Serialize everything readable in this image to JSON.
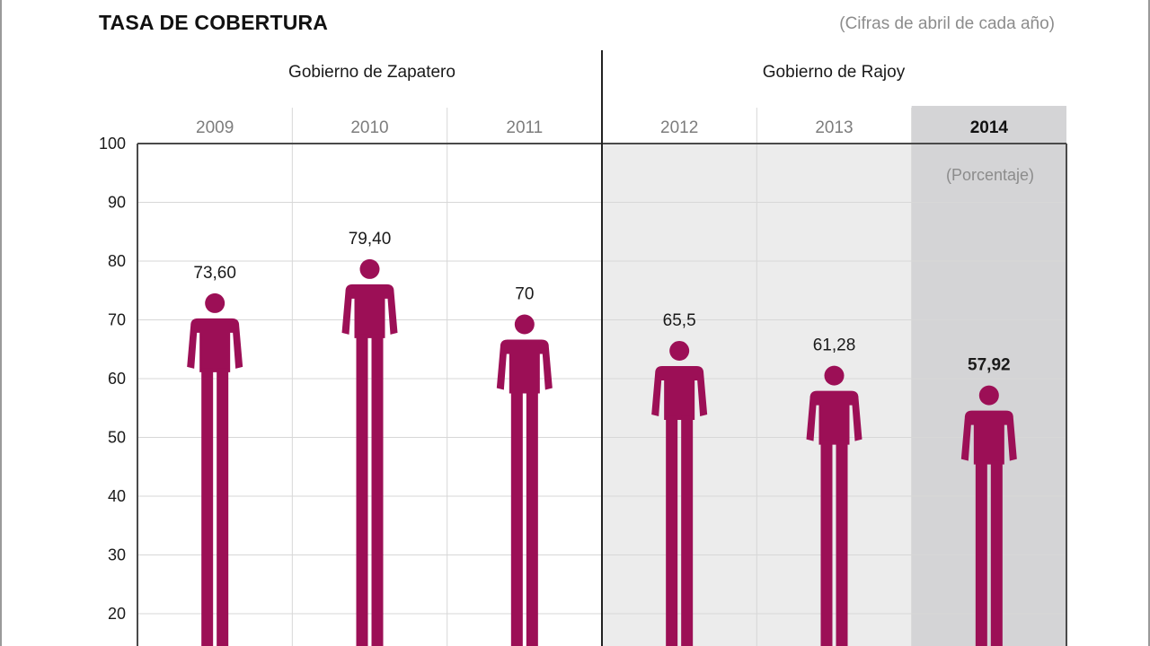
{
  "header": {
    "title": "TASA DE COBERTURA",
    "subtitle": "(Cifras de abril de cada año)"
  },
  "groups": [
    {
      "label": "Gobierno de Zapatero"
    },
    {
      "label": "Gobierno de Rajoy"
    }
  ],
  "unit_note": "(Porcentaje)",
  "colors": {
    "figure": "#9c0f56",
    "rajoy_bg": "#ececec",
    "highlight_bg": "#d4d4d6",
    "grid": "#d7d7d7",
    "axis": "#4a4a4a"
  },
  "chart_data": {
    "type": "bar",
    "title": "TASA DE COBERTURA",
    "subtitle": "(Cifras de abril de cada año)",
    "categories": [
      "2009",
      "2010",
      "2011",
      "2012",
      "2013",
      "2014"
    ],
    "values": [
      73.6,
      79.4,
      70,
      65.5,
      61.28,
      57.92
    ],
    "value_labels": [
      "73,60",
      "79,40",
      "70",
      "65,5",
      "61,28",
      "57,92"
    ],
    "highlight": "2014",
    "yticks": [
      100,
      90,
      80,
      70,
      60,
      50,
      40,
      30,
      20
    ],
    "ylim": [
      0,
      100
    ],
    "grid": true,
    "mark": "person-icon"
  }
}
